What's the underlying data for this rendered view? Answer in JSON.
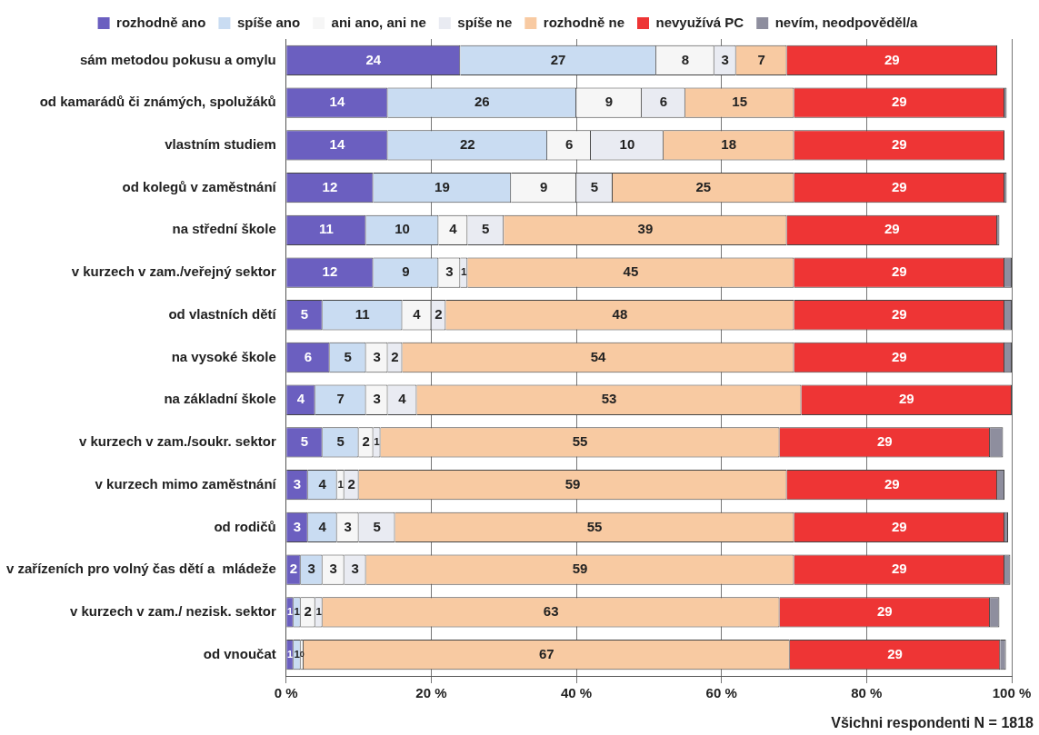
{
  "chart_data": {
    "type": "bar",
    "orientation": "horizontal",
    "stacked": true,
    "categories": [
      "sám metodou pokusu a omylu",
      "od kamarádů či známých, spolužáků",
      "vlastním studiem",
      "od kolegů v zaměstnání",
      "na střední škole",
      "v kurzech v zam./veřejný sektor",
      "od vlastních dětí",
      "na vysoké škole",
      "na základní škole",
      "v kurzech v zam./soukr. sektor",
      "v kurzech mimo zaměstnání",
      "od rodičů",
      "v zařízeních pro volný čas dětí a  mládeže",
      "v kurzech v zam./ nezisk. sektor",
      "od vnoučat"
    ],
    "series": [
      {
        "name": "rozhodně ano",
        "color": "#6b5fc0",
        "values": [
          24,
          14,
          14,
          12,
          11,
          12,
          5,
          6,
          4,
          5,
          3,
          3,
          2,
          1,
          1
        ],
        "value_labels": [
          "24",
          "14",
          "14",
          "12",
          "11",
          "12",
          "5",
          "6",
          "4",
          "5",
          "3",
          "3",
          "2",
          "1",
          "1"
        ]
      },
      {
        "name": "spíše ano",
        "color": "#c9dcf2",
        "values": [
          27,
          26,
          22,
          19,
          10,
          9,
          11,
          5,
          7,
          5,
          4,
          4,
          3,
          1,
          1
        ],
        "value_labels": [
          "27",
          "26",
          "22",
          "19",
          "10",
          "9",
          "11",
          "5",
          "7",
          "5",
          "4",
          "4",
          "3",
          "1",
          "1"
        ]
      },
      {
        "name": "ani ano, ani ne",
        "color": "#f6f6f6",
        "values": [
          8,
          9,
          6,
          9,
          4,
          3,
          4,
          3,
          3,
          2,
          1,
          3,
          3,
          2,
          0.4
        ],
        "value_labels": [
          "8",
          "9",
          "6",
          "9",
          "4",
          "3",
          "4",
          "3",
          "3",
          "2",
          "1",
          "3",
          "3",
          "2",
          "0"
        ]
      },
      {
        "name": "spíše ne",
        "color": "#e9ebf2",
        "values": [
          3,
          6,
          10,
          5,
          5,
          1,
          2,
          2,
          4,
          1,
          2,
          5,
          3,
          1,
          null
        ],
        "value_labels": [
          "3",
          "6",
          "10",
          "5",
          "5",
          "1",
          "2",
          "2",
          "4",
          "1",
          "2",
          "5",
          "3",
          "1",
          null
        ]
      },
      {
        "name": "rozhodně ne",
        "color": "#f8caa2",
        "values": [
          7,
          15,
          18,
          25,
          39,
          45,
          48,
          54,
          53,
          55,
          59,
          55,
          59,
          63,
          67
        ],
        "value_labels": [
          "7",
          "15",
          "18",
          "25",
          "39",
          "45",
          "48",
          "54",
          "53",
          "55",
          "59",
          "55",
          "59",
          "63",
          "67"
        ]
      },
      {
        "name": "nevyužívá PC",
        "color": "#ee3535",
        "values": [
          29,
          29,
          29,
          29,
          29,
          29,
          29,
          29,
          29,
          29,
          29,
          29,
          29,
          29,
          29
        ],
        "value_labels": [
          "29",
          "29",
          "29",
          "29",
          "29",
          "29",
          "29",
          "29",
          "29",
          "29",
          "29",
          "29",
          "29",
          "29",
          "29"
        ]
      },
      {
        "name": "nevím, neodpověděl/a",
        "color": "#8e8e9e",
        "values": [
          0,
          0.3,
          0,
          0.3,
          0.3,
          1,
          1,
          1,
          0,
          1.8,
          1,
          0.5,
          0.8,
          1.3,
          0.8
        ]
      }
    ],
    "xlim": [
      0,
      100
    ],
    "xticks": [
      {
        "value": 0,
        "label": "0 %"
      },
      {
        "value": 20,
        "label": "20 %"
      },
      {
        "value": 40,
        "label": "40 %"
      },
      {
        "value": 60,
        "label": "60 %"
      },
      {
        "value": 80,
        "label": "80 %"
      },
      {
        "value": 100,
        "label": "100 %"
      }
    ],
    "grid": "x",
    "legend": "top",
    "annotations": [
      "Všichni respondenti N = 1818"
    ]
  }
}
